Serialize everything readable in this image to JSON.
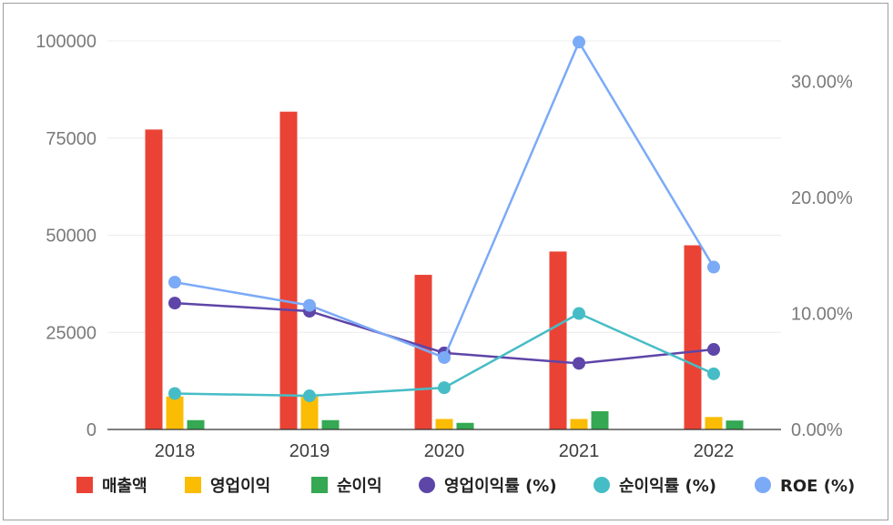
{
  "chart_data": {
    "type": "bar",
    "title": "",
    "categories": [
      "2018",
      "2019",
      "2020",
      "2021",
      "2022"
    ],
    "left_axis": {
      "ylim": [
        0,
        100000
      ],
      "ticks": [
        "0",
        "25000",
        "50000",
        "75000",
        "100000"
      ]
    },
    "right_axis": {
      "ylim": [
        0,
        0.335
      ],
      "ticks": [
        "0.00%",
        "10.00%",
        "20.00%",
        "30.00%"
      ]
    },
    "grid": true,
    "legend_position": "bottom",
    "series": [
      {
        "name": "매출액",
        "kind": "bar",
        "axis": "left",
        "color": "#ea4335",
        "values": [
          77200,
          81800,
          39800,
          45800,
          47400
        ]
      },
      {
        "name": "영업이익",
        "kind": "bar",
        "axis": "left",
        "color": "#fbbc04",
        "values": [
          8500,
          8500,
          2700,
          2700,
          3200
        ]
      },
      {
        "name": "순이익",
        "kind": "bar",
        "axis": "left",
        "color": "#34a853",
        "values": [
          2400,
          2400,
          1700,
          4700,
          2300
        ]
      },
      {
        "name": "영업이익률 (%)",
        "kind": "line",
        "axis": "right",
        "color": "#5e45a8",
        "values": [
          0.109,
          0.102,
          0.066,
          0.057,
          0.069
        ]
      },
      {
        "name": "순이익률 (%)",
        "kind": "line",
        "axis": "right",
        "color": "#46bdc6",
        "values": [
          0.031,
          0.029,
          0.036,
          0.1,
          0.048
        ]
      },
      {
        "name": "ROE (%)",
        "kind": "line",
        "axis": "right",
        "color": "#7baaf7",
        "values": [
          0.127,
          0.107,
          0.062,
          0.334,
          0.14
        ]
      }
    ]
  }
}
